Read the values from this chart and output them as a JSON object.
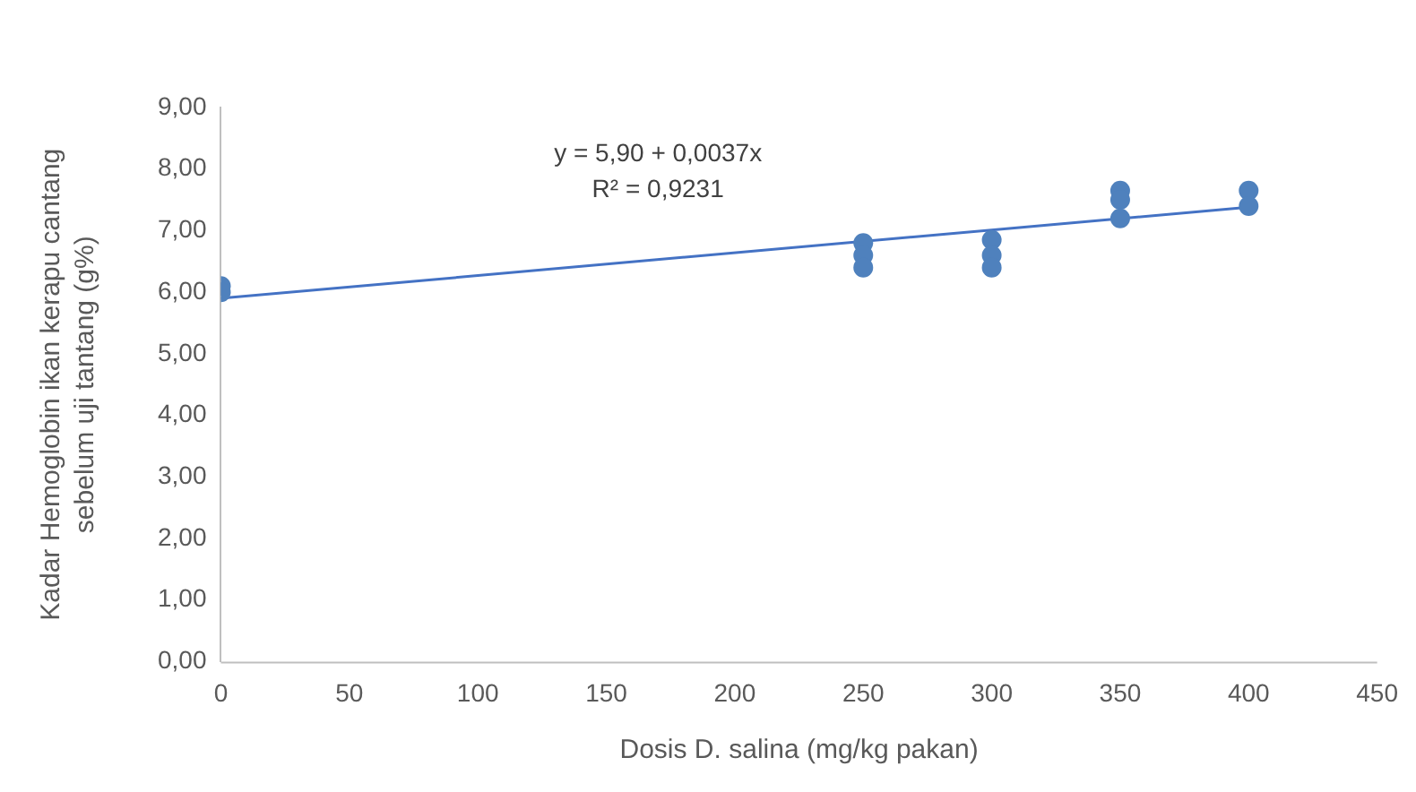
{
  "chart_data": {
    "type": "scatter",
    "xlabel": "Dosis D. salina (mg/kg pakan)",
    "ylabel": "Kadar Hemoglobin ikan kerapu cantang sebelum uji tantang (g%)",
    "series": [
      {
        "type": "scatter",
        "color": "#4f81bd",
        "x": [
          0,
          0,
          250,
          250,
          250,
          300,
          300,
          300,
          350,
          350,
          350,
          400,
          400
        ],
        "values": [
          6.1,
          6.0,
          6.8,
          6.6,
          6.4,
          6.85,
          6.6,
          6.4,
          7.65,
          7.5,
          7.2,
          7.65,
          7.4
        ]
      },
      {
        "type": "line",
        "color": "#4472c4",
        "x": [
          0,
          400
        ],
        "values": [
          5.9,
          7.38
        ],
        "marker": "none"
      }
    ],
    "marker": "circle",
    "grid": false,
    "legend": false,
    "xlim": [
      0,
      450
    ],
    "xticks": [
      0,
      50,
      100,
      150,
      200,
      250,
      300,
      350,
      400,
      450
    ],
    "ylim": [
      0,
      9
    ],
    "yticks": [
      {
        "value": 0,
        "label": "0,00"
      },
      {
        "value": 1,
        "label": "1,00"
      },
      {
        "value": 2,
        "label": "2,00"
      },
      {
        "value": 3,
        "label": "3,00"
      },
      {
        "value": 4,
        "label": "4,00"
      },
      {
        "value": 5,
        "label": "5,00"
      },
      {
        "value": 6,
        "label": "6,00"
      },
      {
        "value": 7,
        "label": "7,00"
      },
      {
        "value": 8,
        "label": "8,00"
      },
      {
        "value": 9,
        "label": "9,00"
      }
    ],
    "annotations": [
      "y = 5,90 + 0,0037x",
      "R² = 0,9231"
    ]
  }
}
